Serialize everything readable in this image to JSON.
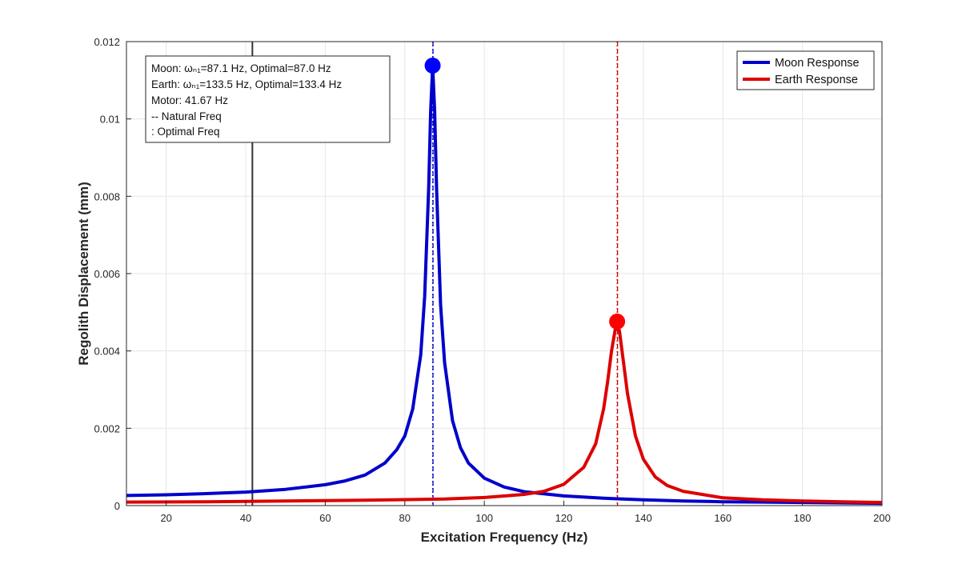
{
  "chart_data": {
    "type": "line",
    "title": "",
    "xlabel": "Excitation Frequency (Hz)",
    "ylabel": "Regolith Displacement (mm)",
    "xlim": [
      10,
      200
    ],
    "ylim": [
      0,
      0.012
    ],
    "x_ticks": [
      20,
      40,
      60,
      80,
      100,
      120,
      140,
      160,
      180,
      200
    ],
    "y_ticks": [
      0,
      0.002,
      0.004,
      0.006,
      0.008,
      0.01,
      0.012
    ],
    "y_tick_labels": [
      "0",
      "0.002",
      "0.004",
      "0.006",
      "0.008",
      "0.01",
      "0.012"
    ],
    "grid": true,
    "legend_position": "top-right",
    "series": [
      {
        "name": "Moon Response",
        "color": "#0000cc",
        "x": [
          10,
          20,
          30,
          40,
          50,
          60,
          65,
          70,
          75,
          78,
          80,
          82,
          84,
          85,
          86,
          86.5,
          87,
          87.5,
          88,
          89,
          90,
          92,
          94,
          96,
          100,
          105,
          110,
          120,
          130,
          140,
          150,
          160,
          170,
          180,
          190,
          200
        ],
        "y": [
          0.00026,
          0.00028,
          0.00031,
          0.00035,
          0.00042,
          0.00054,
          0.00064,
          0.00079,
          0.0011,
          0.00145,
          0.0018,
          0.0025,
          0.0039,
          0.0054,
          0.0082,
          0.0102,
          0.01138,
          0.0102,
          0.0082,
          0.0052,
          0.0037,
          0.0022,
          0.0015,
          0.0011,
          0.00071,
          0.00048,
          0.00036,
          0.00025,
          0.00019,
          0.00015,
          0.00012,
          0.0001,
          9e-05,
          8e-05,
          7e-05,
          6e-05
        ]
      },
      {
        "name": "Earth Response",
        "color": "#dd0000",
        "x": [
          10,
          30,
          50,
          70,
          90,
          100,
          110,
          115,
          120,
          125,
          128,
          130,
          131,
          132,
          133,
          133.4,
          134,
          135,
          136,
          138,
          140,
          143,
          146,
          150,
          160,
          170,
          180,
          190,
          200
        ],
        "y": [
          9e-05,
          0.0001,
          0.00012,
          0.00014,
          0.00017,
          0.00021,
          0.00029,
          0.00037,
          0.00055,
          0.00099,
          0.0016,
          0.0025,
          0.0032,
          0.004,
          0.0046,
          0.00476,
          0.0045,
          0.0037,
          0.0029,
          0.0018,
          0.0012,
          0.00074,
          0.00052,
          0.00037,
          0.0002,
          0.00015,
          0.00012,
          0.0001,
          8e-05
        ]
      }
    ],
    "peaks": [
      {
        "series": "Moon Response",
        "x": 87.0,
        "y": 0.01138,
        "color": "#0000ff"
      },
      {
        "series": "Earth Response",
        "x": 133.4,
        "y": 0.00476,
        "color": "#ff0000"
      }
    ],
    "vertical_lines": [
      {
        "label": "Motor",
        "x": 41.67,
        "color": "#333333",
        "style": "solid"
      },
      {
        "label": "Moon natural",
        "x": 87.1,
        "color": "#0000cc",
        "style": "dashed"
      },
      {
        "label": "Moon optimal",
        "x": 87.0,
        "color": "#0000cc",
        "style": "dotted"
      },
      {
        "label": "Earth natural",
        "x": 133.5,
        "color": "#cc0000",
        "style": "dashed"
      },
      {
        "label": "Earth optimal",
        "x": 133.4,
        "color": "#cc0000",
        "style": "dotted"
      }
    ],
    "annotation_lines": [
      "Moon: ωₙ₁=87.1 Hz, Optimal=87.0 Hz",
      "Earth: ωₙ₁=133.5 Hz, Optimal=133.4 Hz",
      "Motor: 41.67 Hz",
      "-- Natural Freq",
      ": Optimal Freq"
    ],
    "legend": [
      "Moon Response",
      "Earth Response"
    ]
  }
}
